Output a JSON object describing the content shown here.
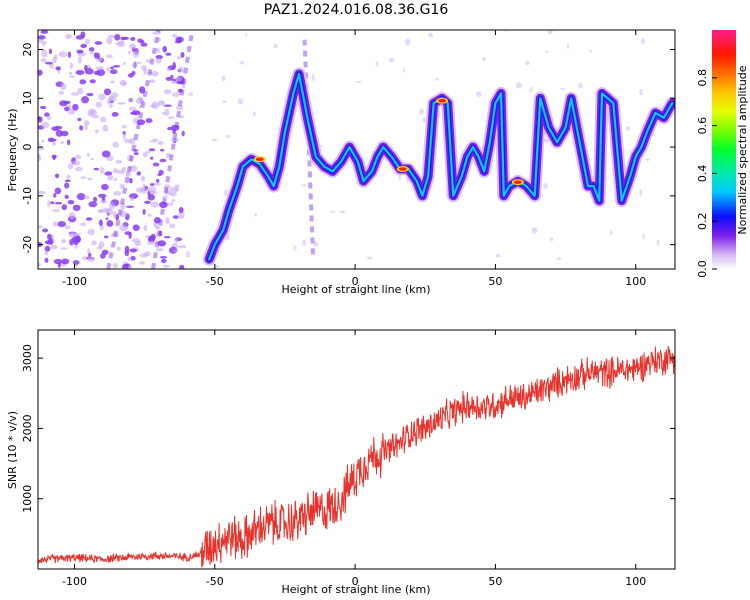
{
  "title": "PAZ1.2024.016.08.36.G16",
  "chart_data": [
    {
      "type": "heatmap",
      "xlabel": "Height of straight line (km)",
      "ylabel": "Frequency (Hz)",
      "xlim": [
        -113,
        114
      ],
      "ylim": [
        -25,
        24
      ],
      "x_ticks": [
        -100,
        -50,
        0,
        50,
        100
      ],
      "y_ticks": [
        -20,
        -10,
        0,
        10,
        20
      ],
      "colorbar": {
        "label": "Normalized spectral amplitude",
        "range": [
          0,
          1
        ],
        "ticks": [
          0.0,
          0.2,
          0.4,
          0.6,
          0.8
        ],
        "colormap": "gist_ncar_r"
      },
      "trace_ridge": [
        [
          -52,
          -23
        ],
        [
          -50,
          -20
        ],
        [
          -47,
          -17
        ],
        [
          -45,
          -13
        ],
        [
          -42,
          -8
        ],
        [
          -40,
          -4
        ],
        [
          -37,
          -2.5
        ],
        [
          -34,
          -3.5
        ],
        [
          -31,
          -6
        ],
        [
          -29,
          -8
        ],
        [
          -27,
          -4
        ],
        [
          -25,
          3
        ],
        [
          -22,
          11
        ],
        [
          -20,
          15
        ],
        [
          -17,
          6
        ],
        [
          -14,
          -2
        ],
        [
          -11,
          -4
        ],
        [
          -8,
          -5
        ],
        [
          -5,
          -3
        ],
        [
          -2,
          0
        ],
        [
          1,
          -3
        ],
        [
          3,
          -7
        ],
        [
          6,
          -5
        ],
        [
          8,
          -2
        ],
        [
          10,
          0
        ],
        [
          13,
          -2
        ],
        [
          16,
          -4.5
        ],
        [
          19,
          -4.5
        ],
        [
          22,
          -7
        ],
        [
          24,
          -10
        ],
        [
          26,
          -6
        ],
        [
          28,
          9
        ],
        [
          31,
          10
        ],
        [
          33,
          9
        ],
        [
          35,
          -10
        ],
        [
          38,
          -6
        ],
        [
          40,
          -2
        ],
        [
          42,
          0
        ],
        [
          44,
          -2
        ],
        [
          46,
          -5
        ],
        [
          48,
          1
        ],
        [
          50,
          9
        ],
        [
          52,
          11
        ],
        [
          53,
          -10
        ],
        [
          55,
          -8
        ],
        [
          58,
          -7
        ],
        [
          61,
          -8
        ],
        [
          64,
          -10
        ],
        [
          66,
          10
        ],
        [
          69,
          4
        ],
        [
          72,
          1
        ],
        [
          75,
          4
        ],
        [
          77,
          10
        ],
        [
          83,
          -8
        ],
        [
          85,
          -8
        ],
        [
          87,
          -11
        ],
        [
          88,
          11
        ],
        [
          90,
          10
        ],
        [
          92,
          9
        ],
        [
          95,
          -11
        ],
        [
          98,
          -6
        ],
        [
          100,
          -2
        ],
        [
          102,
          0
        ],
        [
          104,
          3
        ],
        [
          107,
          7
        ],
        [
          110,
          6
        ],
        [
          113,
          9
        ]
      ],
      "hot_spots": [
        [
          17,
          -4.5
        ],
        [
          58,
          -7.2
        ],
        [
          31,
          9.5
        ],
        [
          -34,
          -2.5
        ]
      ]
    },
    {
      "type": "line",
      "xlabel": "Height of straight line (km)",
      "ylabel": "SNR (10 * v/v)",
      "xlim": [
        -113,
        114
      ],
      "ylim": [
        0,
        3400
      ],
      "x_ticks": [
        -100,
        -50,
        0,
        50,
        100
      ],
      "y_ticks": [
        1000,
        2000,
        3000
      ],
      "color": "#e8322c",
      "series": [
        {
          "x": [
            -113,
            -100,
            -90,
            -80,
            -70,
            -60,
            -55,
            -50,
            -45,
            -40,
            -35,
            -30,
            -25,
            -20,
            -15,
            -10,
            -5,
            0,
            5,
            10,
            15,
            20,
            25,
            30,
            35,
            40,
            45,
            50,
            55,
            60,
            65,
            70,
            75,
            80,
            85,
            90,
            95,
            100,
            105,
            110,
            114
          ],
          "values": [
            130,
            160,
            140,
            170,
            190,
            170,
            210,
            380,
            460,
            420,
            560,
            650,
            640,
            700,
            820,
            840,
            990,
            1320,
            1580,
            1650,
            1750,
            1950,
            2000,
            2120,
            2230,
            2330,
            2300,
            2330,
            2430,
            2430,
            2520,
            2600,
            2700,
            2750,
            2800,
            2800,
            2830,
            2850,
            2950,
            2980,
            3020
          ]
        }
      ]
    }
  ]
}
